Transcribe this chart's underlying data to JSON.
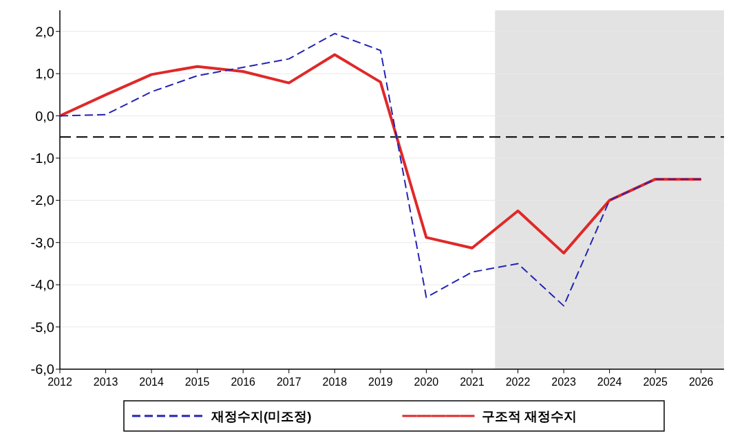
{
  "chart_data": {
    "type": "line",
    "x": [
      2012,
      2013,
      2014,
      2015,
      2016,
      2017,
      2018,
      2019,
      2020,
      2021,
      2022,
      2023,
      2024,
      2025,
      2026
    ],
    "series": [
      {
        "name": "재정수지(미조정)",
        "color": "#2323b4",
        "line_style": "dashed",
        "values": [
          0.0,
          0.03,
          0.57,
          0.95,
          1.15,
          1.35,
          1.95,
          1.55,
          -4.3,
          -3.7,
          -3.5,
          -4.5,
          -2.0,
          -1.5,
          -1.5
        ]
      },
      {
        "name": "구조적 재정수지",
        "color": "#e02828",
        "line_style": "solid",
        "values": [
          0.0,
          0.5,
          0.98,
          1.17,
          1.05,
          0.78,
          1.45,
          0.8,
          -2.88,
          -3.13,
          -2.25,
          -3.25,
          -2.0,
          -1.5,
          -1.5
        ]
      }
    ],
    "xlim": [
      2012,
      2026.5
    ],
    "xticks": [
      2012,
      2013,
      2014,
      2015,
      2016,
      2017,
      2018,
      2019,
      2020,
      2021,
      2022,
      2023,
      2024,
      2025,
      2026
    ],
    "ylim": [
      -6,
      2.5
    ],
    "yticks": [
      {
        "value": -6,
        "label": "-6,0"
      },
      {
        "value": -5,
        "label": "-5,0"
      },
      {
        "value": -4,
        "label": "-4,0"
      },
      {
        "value": -3,
        "label": "-3,0"
      },
      {
        "value": -2,
        "label": "-2,0"
      },
      {
        "value": -1,
        "label": "-1,0"
      },
      {
        "value": 0,
        "label": "0,0"
      },
      {
        "value": 1,
        "label": "1,0"
      },
      {
        "value": 2,
        "label": "2,0"
      }
    ],
    "ref_lines": [
      {
        "axis": "y",
        "value": -0.5,
        "color": "#000000",
        "line_style": "dashed"
      }
    ],
    "bands": [
      {
        "axis": "x",
        "from": 2021.5,
        "to": 2026.5,
        "color": "#e3e3e3"
      }
    ],
    "grid": "y",
    "legend": "bottom",
    "marker": "none"
  }
}
